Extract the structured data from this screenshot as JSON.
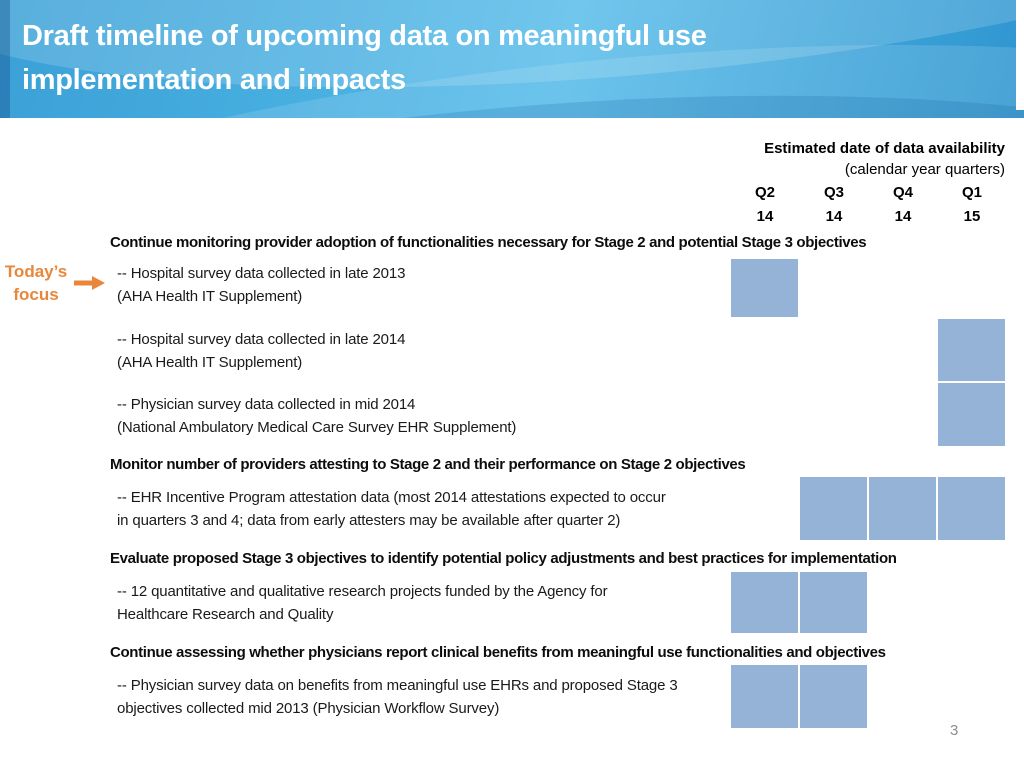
{
  "slide": {
    "title_line1": "Draft timeline of upcoming data on meaningful use",
    "title_line2": "implementation and impacts",
    "page_number": "3"
  },
  "focus_callout": {
    "line1": "Today’s",
    "line2": "focus",
    "arrow_icon": "right-arrow",
    "color": "#E8873B"
  },
  "timeline": {
    "axis_title_bold": "Estimated date of data availability",
    "axis_title_sub": "(calendar year quarters)",
    "quarters": [
      {
        "q": "Q2",
        "yr": "14"
      },
      {
        "q": "Q3",
        "yr": "14"
      },
      {
        "q": "Q4",
        "yr": "14"
      },
      {
        "q": "Q1",
        "yr": "15"
      }
    ],
    "marker_color": "#95B3D7",
    "sections": [
      {
        "heading": "Continue monitoring provider adoption of functionalities necessary for Stage 2 and potential Stage 3 objectives",
        "items": [
          {
            "lines": [
              "-- Hospital survey data collected in late 2013",
              "(AHA Health IT Supplement)"
            ],
            "active_quarters": [
              0
            ]
          },
          {
            "lines": [
              "-- Hospital survey data collected in late 2014",
              "(AHA Health IT Supplement)"
            ],
            "active_quarters": [
              3
            ]
          },
          {
            "lines": [
              "-- Physician survey data collected in mid 2014",
              "(National Ambulatory Medical Care Survey EHR Supplement)"
            ],
            "active_quarters": [
              3
            ]
          }
        ]
      },
      {
        "heading": "Monitor number of providers attesting to Stage 2 and their performance on Stage 2 objectives",
        "items": [
          {
            "lines": [
              "-- EHR Incentive Program attestation data (most 2014 attestations expected to occur",
              "in quarters 3 and 4; data from early attesters may be available after quarter 2)"
            ],
            "active_quarters": [
              1,
              2,
              3
            ]
          }
        ]
      },
      {
        "heading": "Evaluate proposed Stage 3 objectives to identify potential policy adjustments and best practices for implementation",
        "items": [
          {
            "lines": [
              "-- 12 quantitative and qualitative research projects funded by the Agency for",
              "Healthcare Research and Quality"
            ],
            "active_quarters": [
              0,
              1
            ]
          }
        ]
      },
      {
        "heading": "Continue assessing whether physicians report clinical benefits from meaningful use functionalities and objectives",
        "items": [
          {
            "lines": [
              "-- Physician survey data on benefits from meaningful use EHRs and proposed Stage 3",
              "objectives collected mid 2013 (Physician Workflow Survey)"
            ],
            "active_quarters": [
              0,
              1
            ]
          }
        ]
      }
    ]
  },
  "colors": {
    "header_blue_light": "#55BBE9",
    "header_blue_dark": "#2E95CF",
    "marker_blue": "#95B3D7",
    "accent_orange": "#E8873B",
    "page_number_gray": "#8C8C8C"
  }
}
